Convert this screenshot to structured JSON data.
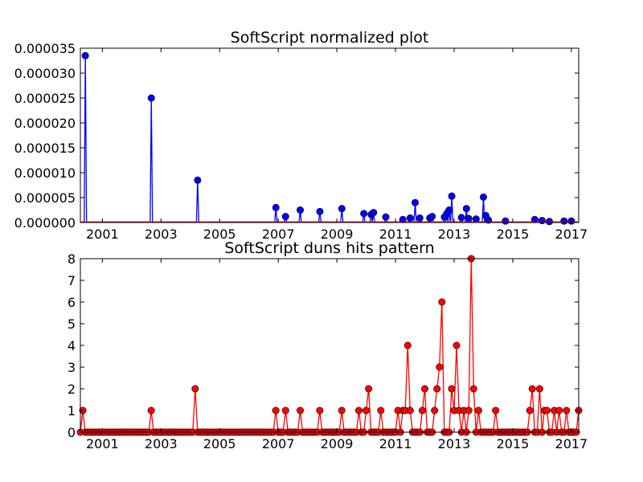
{
  "chart_data": [
    {
      "type": "line",
      "title": "SoftScript normalized plot",
      "xlabel": "",
      "ylabel": "",
      "xlim": [
        2000.25,
        2017.25
      ],
      "ylim": [
        0,
        3.5e-05
      ],
      "x_ticks": [
        "2001",
        "2003",
        "2005",
        "2007",
        "2009",
        "2011",
        "2013",
        "2015",
        "2017"
      ],
      "y_ticks": [
        "0.000000",
        "0.000005",
        "0.000010",
        "0.000015",
        "0.000020",
        "0.000025",
        "0.000030",
        "0.000035"
      ],
      "series": [
        {
          "color": "#0000ff",
          "marker_color": "#0000ff",
          "points": [
            [
              2000.42,
              3.35e-05
            ],
            [
              2002.67,
              2.5e-05
            ],
            [
              2004.25,
              8.5e-06
            ],
            [
              2006.92,
              3e-06
            ],
            [
              2007.25,
              1.2e-06
            ],
            [
              2007.75,
              2.5e-06
            ],
            [
              2008.42,
              2.2e-06
            ],
            [
              2009.17,
              2.8e-06
            ],
            [
              2009.92,
              1.8e-06
            ],
            [
              2010.17,
              1.6e-06
            ],
            [
              2010.25,
              2e-06
            ],
            [
              2010.67,
              1.1e-06
            ],
            [
              2011.25,
              6e-07
            ],
            [
              2011.5,
              9e-07
            ],
            [
              2011.67,
              4e-06
            ],
            [
              2011.83,
              9e-07
            ],
            [
              2012.17,
              9e-07
            ],
            [
              2012.25,
              1.2e-06
            ],
            [
              2012.67,
              1.1e-06
            ],
            [
              2012.75,
              1.8e-06
            ],
            [
              2012.83,
              2.5e-06
            ],
            [
              2012.92,
              5.3e-06
            ],
            [
              2013.25,
              1e-06
            ],
            [
              2013.42,
              2.8e-06
            ],
            [
              2013.5,
              8e-07
            ],
            [
              2013.75,
              7e-07
            ],
            [
              2014.0,
              5.1e-06
            ],
            [
              2014.08,
              1.4e-06
            ],
            [
              2014.17,
              5e-07
            ],
            [
              2014.75,
              3e-07
            ],
            [
              2015.75,
              6e-07
            ],
            [
              2016.0,
              4e-07
            ],
            [
              2016.25,
              2e-07
            ],
            [
              2016.75,
              3e-07
            ],
            [
              2017.0,
              3e-07
            ]
          ]
        },
        {
          "color": "#ff0000",
          "marker_color": null,
          "points": [
            [
              2000.25,
              1e-07
            ],
            [
              2013.0,
              1e-07
            ],
            [
              2017.25,
              1e-07
            ]
          ]
        }
      ],
      "grid": false
    },
    {
      "type": "line",
      "title": "SoftScript duns hits pattern",
      "xlabel": "",
      "ylabel": "",
      "xlim": [
        2000.25,
        2017.25
      ],
      "ylim": [
        0,
        8
      ],
      "x_ticks": [
        "2001",
        "2003",
        "2005",
        "2007",
        "2009",
        "2011",
        "2013",
        "2015",
        "2017"
      ],
      "y_ticks": [
        "0",
        "1",
        "2",
        "3",
        "4",
        "5",
        "6",
        "7",
        "8"
      ],
      "series": [
        {
          "color": "#ff0000",
          "marker_color": "#ff0000",
          "monthly_start": "2000-04",
          "monthly_values": [
            0,
            1,
            0,
            0,
            0,
            0,
            0,
            0,
            0,
            0,
            0,
            0,
            0,
            0,
            0,
            0,
            0,
            0,
            0,
            0,
            0,
            0,
            0,
            0,
            0,
            0,
            0,
            0,
            0,
            1,
            0,
            0,
            0,
            0,
            0,
            0,
            0,
            0,
            0,
            0,
            0,
            0,
            0,
            0,
            0,
            0,
            0,
            2,
            0,
            0,
            0,
            0,
            0,
            0,
            0,
            0,
            0,
            0,
            0,
            0,
            0,
            0,
            0,
            0,
            0,
            0,
            0,
            0,
            0,
            0,
            0,
            0,
            0,
            0,
            0,
            0,
            0,
            0,
            0,
            0,
            1,
            0,
            0,
            0,
            1,
            0,
            0,
            0,
            0,
            0,
            1,
            0,
            0,
            0,
            0,
            0,
            0,
            0,
            1,
            0,
            0,
            0,
            0,
            0,
            0,
            0,
            0,
            1,
            0,
            0,
            0,
            0,
            0,
            0,
            1,
            0,
            0,
            1,
            2,
            0,
            0,
            0,
            0,
            1,
            0,
            0,
            0,
            0,
            0,
            0,
            1,
            0,
            1,
            1,
            4,
            1,
            0,
            0,
            0,
            0,
            1,
            2,
            0,
            0,
            0,
            1,
            2,
            3,
            6,
            0,
            0,
            0,
            2,
            1,
            4,
            1,
            0,
            1,
            0,
            1,
            8,
            2,
            0,
            1,
            0,
            0,
            0,
            0,
            0,
            0,
            1,
            0,
            0,
            0,
            0,
            0,
            0,
            0,
            0,
            0,
            0,
            0,
            0,
            0,
            1,
            2,
            0,
            0,
            2,
            0,
            1,
            1,
            0,
            0,
            1,
            0,
            1,
            0,
            0,
            1,
            0,
            0,
            0,
            0,
            1
          ]
        }
      ],
      "grid": false
    }
  ]
}
